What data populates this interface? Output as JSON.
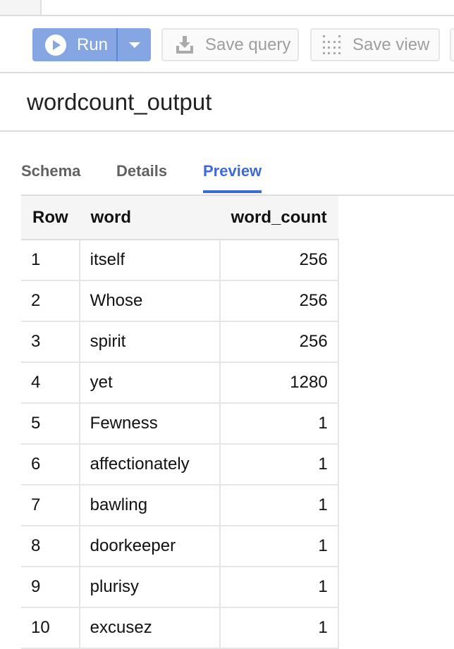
{
  "toolbar": {
    "run_label": "Run",
    "save_query_label": "Save query",
    "save_view_label": "Save view"
  },
  "title": "wordcount_output",
  "tabs": [
    {
      "label": "Schema"
    },
    {
      "label": "Details"
    },
    {
      "label": "Preview",
      "active": true
    }
  ],
  "accent": "#3e6ad6",
  "table": {
    "headers": [
      "Row",
      "word",
      "word_count"
    ],
    "rows": [
      [
        "1",
        "itself",
        "256"
      ],
      [
        "2",
        "Whose",
        "256"
      ],
      [
        "3",
        "spirit",
        "256"
      ],
      [
        "4",
        "yet",
        "1280"
      ],
      [
        "5",
        "Fewness",
        "1"
      ],
      [
        "6",
        "affectionately",
        "1"
      ],
      [
        "7",
        "bawling",
        "1"
      ],
      [
        "8",
        "doorkeeper",
        "1"
      ],
      [
        "9",
        "plurisy",
        "1"
      ],
      [
        "10",
        "excusez",
        "1"
      ]
    ]
  }
}
